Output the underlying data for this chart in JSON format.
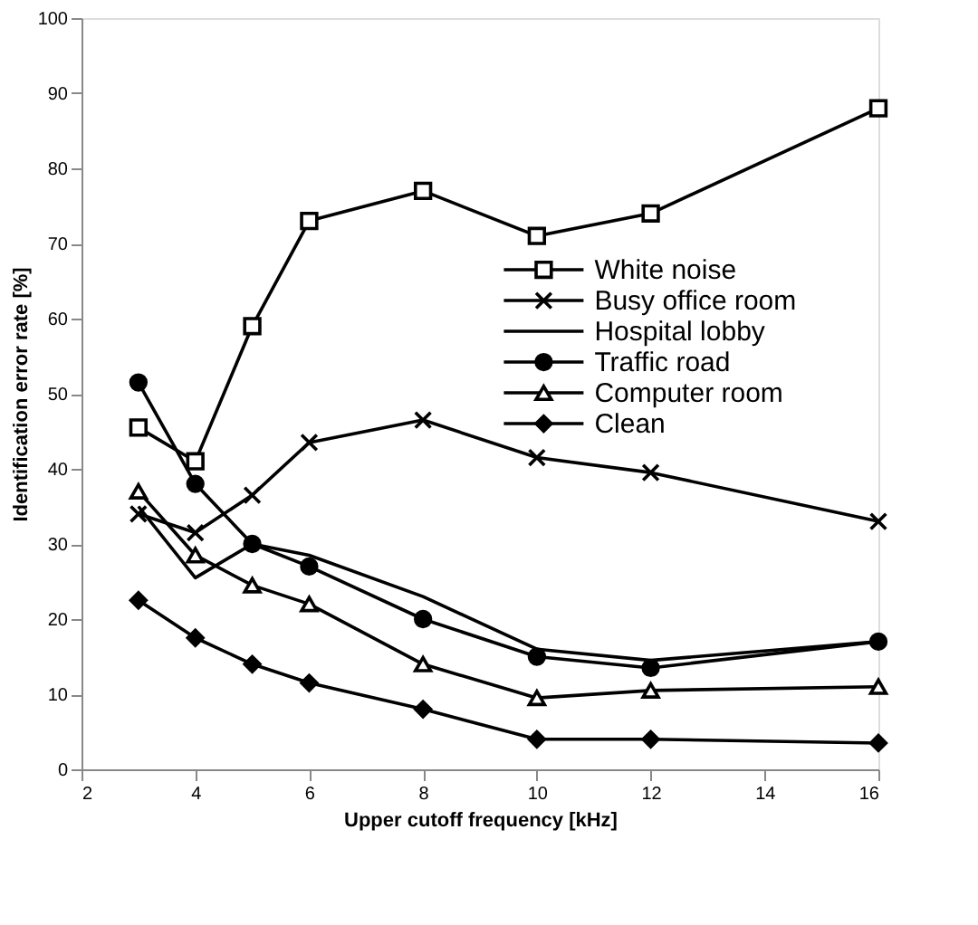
{
  "chart_data": {
    "type": "line",
    "xlabel": "Upper cutoff frequency [kHz]",
    "ylabel": "Identification error rate [%]",
    "x": [
      3,
      4,
      5,
      6,
      8,
      10,
      12,
      16
    ],
    "xlim": [
      2,
      16
    ],
    "xticks": [
      2,
      4,
      6,
      8,
      10,
      12,
      14,
      16
    ],
    "ylim": [
      0,
      100
    ],
    "yticks": [
      0,
      10,
      20,
      30,
      40,
      50,
      60,
      70,
      80,
      90,
      100
    ],
    "grid": false,
    "legend": "top right",
    "line_style": "solid",
    "series": [
      {
        "name": "White noise",
        "color": "#000000",
        "marker": "square",
        "values": [
          45.5,
          41,
          59,
          73,
          77,
          71,
          74,
          88
        ]
      },
      {
        "name": "Busy office room",
        "color": "#000000",
        "marker": "cross",
        "values": [
          34,
          31.5,
          36.5,
          43.5,
          46.5,
          41.5,
          39.5,
          33
        ]
      },
      {
        "name": "Hospital lobby",
        "color": "#000000",
        "marker": "none",
        "values": [
          35,
          25.5,
          30,
          28.5,
          23,
          16,
          14.5,
          17
        ]
      },
      {
        "name": "Traffic road",
        "color": "#000000",
        "marker": "circle",
        "values": [
          51.5,
          38,
          30,
          27,
          20,
          15,
          13.5,
          17
        ]
      },
      {
        "name": "Computer room",
        "color": "#000000",
        "marker": "triangle",
        "values": [
          37,
          28.5,
          24.5,
          22,
          14,
          9.5,
          10.5,
          11
        ]
      },
      {
        "name": "Clean",
        "color": "#000000",
        "marker": "diamond",
        "values": [
          22.5,
          17.5,
          14,
          11.5,
          8,
          4,
          4,
          3.5
        ]
      }
    ]
  }
}
